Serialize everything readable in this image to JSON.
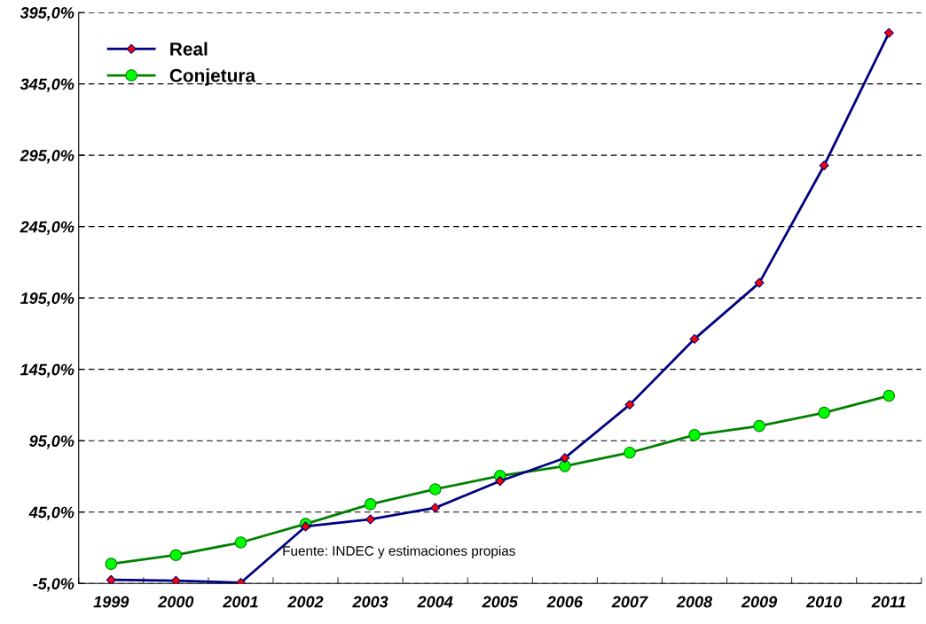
{
  "chart_data": {
    "type": "line",
    "categories": [
      "1999",
      "2000",
      "2001",
      "2002",
      "2003",
      "2004",
      "2005",
      "2006",
      "2007",
      "2008",
      "2009",
      "2010",
      "2011"
    ],
    "series": [
      {
        "name": "Real",
        "color": "#000080",
        "marker": "diamond",
        "values": [
          -2.5,
          -3.1,
          -4.5,
          34.9,
          39.9,
          48.0,
          66.7,
          82.9,
          120.2,
          166.3,
          205.6,
          287.8,
          380.7
        ]
      },
      {
        "name": "Conjetura",
        "color": "#008000",
        "marker": "circle",
        "values": [
          8.7,
          14.9,
          23.7,
          36.7,
          50.5,
          61.0,
          70.4,
          77.2,
          86.6,
          99.0,
          105.3,
          114.6,
          126.5
        ]
      }
    ],
    "ylim": [
      -5,
      395
    ],
    "yticks": [
      {
        "value": -5,
        "label": "-5,0%"
      },
      {
        "value": 45,
        "label": "45,0%"
      },
      {
        "value": 95,
        "label": "95,0%"
      },
      {
        "value": 145,
        "label": "145,0%"
      },
      {
        "value": 195,
        "label": "195,0%"
      },
      {
        "value": 245,
        "label": "245,0%"
      },
      {
        "value": 295,
        "label": "295,0%"
      },
      {
        "value": 345,
        "label": "345,0%"
      },
      {
        "value": 395,
        "label": "395,0%"
      }
    ],
    "grid": "y",
    "legend": "top left",
    "line_style": "solid",
    "annotations": [
      "Fuente: INDEC y estimaciones propias"
    ]
  }
}
